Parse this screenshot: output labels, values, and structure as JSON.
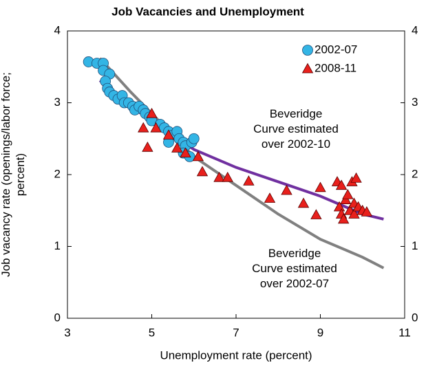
{
  "chart_data": {
    "type": "scatter",
    "title": "Job Vacancies and Unemployment",
    "x_label": "Unemployment rate (percent)",
    "y_label": [
      "Job vacancy rate (openings/labor force;",
      "percent)"
    ],
    "xlim": [
      3,
      11
    ],
    "xticks": [
      3,
      5,
      7,
      9,
      11
    ],
    "ylim": [
      0,
      4
    ],
    "yticks": [
      0,
      1,
      2,
      3,
      4
    ],
    "y2lim": [
      0,
      4
    ],
    "y2ticks": [
      0,
      1,
      2,
      3,
      4
    ],
    "legend": "upper right",
    "series": [
      {
        "type": "line",
        "color": "#808080",
        "x": [
          3.77,
          4.5,
          5,
          6,
          7,
          8,
          9,
          10,
          10.5
        ],
        "values": [
          3.62,
          3.15,
          2.85,
          2.25,
          1.85,
          1.45,
          1.1,
          0.85,
          0.7
        ]
      },
      {
        "type": "line",
        "color": "#7030a0",
        "x": [
          3.77,
          4.5,
          5,
          6,
          7,
          8,
          9,
          10,
          10.5
        ],
        "values": [
          3.31,
          2.95,
          2.75,
          2.35,
          2.1,
          1.9,
          1.7,
          1.45,
          1.38
        ]
      },
      {
        "type": "scatter",
        "name": "2002-07",
        "color": "#33b5e5",
        "marker": "circle",
        "x": [
          3.5,
          3.7,
          3.85,
          3.85,
          4.0,
          3.9,
          3.95,
          4.0,
          4.1,
          4.2,
          4.3,
          4.35,
          4.45,
          4.55,
          4.6,
          4.7,
          4.8,
          4.85,
          4.95,
          5.0,
          5.2,
          5.3,
          5.4,
          5.5,
          5.6,
          5.65,
          5.75,
          5.8,
          5.95,
          6.0,
          5.4,
          5.75,
          5.9
        ],
        "values": [
          3.57,
          3.55,
          3.55,
          3.45,
          3.4,
          3.3,
          3.2,
          3.15,
          3.1,
          3.05,
          3.1,
          3.0,
          3.0,
          2.95,
          2.9,
          2.95,
          2.9,
          2.85,
          2.8,
          2.75,
          2.7,
          2.65,
          2.6,
          2.55,
          2.6,
          2.5,
          2.45,
          2.4,
          2.45,
          2.5,
          2.45,
          2.3,
          2.25
        ]
      },
      {
        "type": "scatter",
        "name": "2008-11",
        "color": "#e8201c",
        "marker": "triangle",
        "x": [
          4.8,
          4.9,
          5.0,
          5.1,
          5.4,
          5.6,
          5.8,
          6.1,
          6.2,
          6.6,
          6.8,
          7.3,
          7.8,
          8.2,
          8.6,
          8.9,
          9.0,
          9.4,
          9.45,
          9.5,
          9.5,
          9.55,
          9.6,
          9.65,
          9.7,
          9.75,
          9.8,
          9.8,
          9.85,
          9.9,
          10.0,
          10.1
        ],
        "values": [
          2.65,
          2.38,
          2.85,
          2.65,
          2.55,
          2.37,
          2.3,
          2.25,
          2.04,
          1.96,
          1.96,
          1.91,
          1.67,
          1.78,
          1.6,
          1.44,
          1.82,
          1.9,
          1.55,
          1.85,
          1.45,
          1.38,
          1.65,
          1.72,
          1.5,
          1.9,
          1.6,
          1.45,
          1.95,
          1.55,
          1.5,
          1.48
        ]
      }
    ],
    "annotations": [
      [
        "Beveridge",
        "Curve estimated",
        "over 2002-10"
      ],
      [
        "Beveridge",
        "Curve estimated",
        "over 2002-07"
      ]
    ]
  }
}
